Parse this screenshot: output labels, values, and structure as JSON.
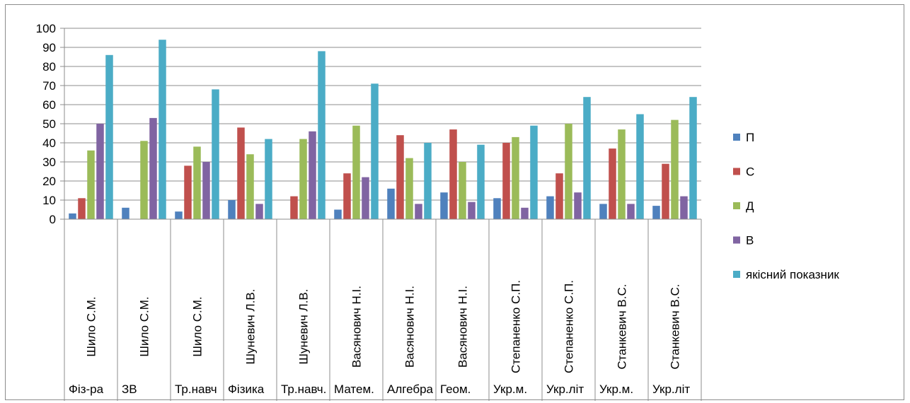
{
  "chart_data": {
    "type": "bar",
    "ylim": [
      0,
      100
    ],
    "yticks": [
      0,
      10,
      20,
      30,
      40,
      50,
      60,
      70,
      80,
      90,
      100
    ],
    "grid": true,
    "legend_position": "right",
    "categories": [
      {
        "teacher": "Шило С.М.",
        "subject": "Фіз-ра"
      },
      {
        "teacher": "Шило С.М.",
        "subject": "ЗВ"
      },
      {
        "teacher": "Шило С.М.",
        "subject": "Тр.навч"
      },
      {
        "teacher": "Шуневич Л.В.",
        "subject": "Фізика"
      },
      {
        "teacher": "Шуневич Л.В.",
        "subject": "Тр.навч."
      },
      {
        "teacher": "Васянович Н.І.",
        "subject": "Матем."
      },
      {
        "teacher": "Васянович Н.І.",
        "subject": "Алгебра"
      },
      {
        "teacher": "Васянович Н.І.",
        "subject": "Геом."
      },
      {
        "teacher": "Степаненко С.П.",
        "subject": "Укр.м."
      },
      {
        "teacher": "Степаненко С.П.",
        "subject": "Укр.літ"
      },
      {
        "teacher": "Станкевич В.С.",
        "subject": "Укр.м."
      },
      {
        "teacher": "Станкевич В.С.",
        "subject": "Укр.літ"
      }
    ],
    "series": [
      {
        "name": "П",
        "color": "#4F81BD",
        "values": [
          3,
          6,
          4,
          10,
          0,
          5,
          16,
          14,
          11,
          12,
          8,
          7
        ]
      },
      {
        "name": "С",
        "color": "#C0504D",
        "values": [
          11,
          0,
          28,
          48,
          12,
          24,
          44,
          47,
          40,
          24,
          37,
          29
        ]
      },
      {
        "name": "Д",
        "color": "#9BBB59",
        "values": [
          36,
          41,
          38,
          34,
          42,
          49,
          32,
          30,
          43,
          50,
          47,
          52
        ]
      },
      {
        "name": "В",
        "color": "#8064A2",
        "values": [
          50,
          53,
          30,
          8,
          46,
          22,
          8,
          9,
          6,
          14,
          8,
          12
        ]
      },
      {
        "name": "якісний показник",
        "color": "#4BACC6",
        "values": [
          86,
          94,
          68,
          42,
          88,
          71,
          40,
          39,
          49,
          64,
          55,
          64
        ]
      }
    ]
  }
}
